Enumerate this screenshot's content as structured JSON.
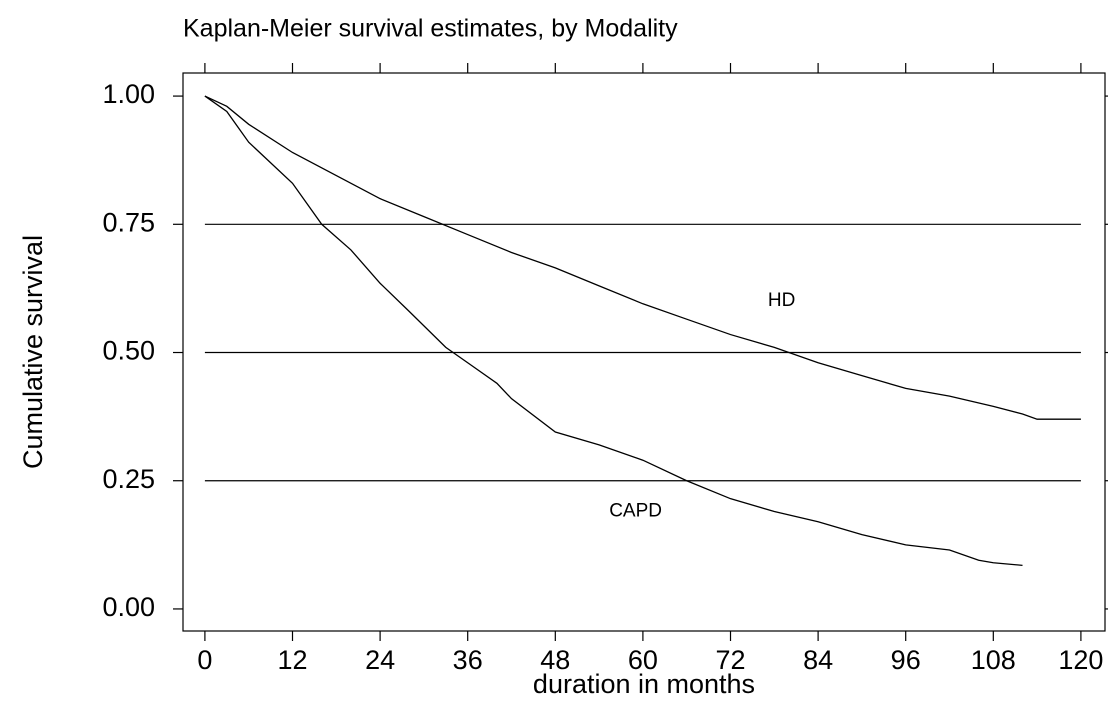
{
  "chart_data": {
    "type": "line",
    "title": "Kaplan-Meier survival estimates, by Modality",
    "x_label": "duration in months",
    "y_label": "Cumulative survival",
    "xlim": [
      -3,
      123.3
    ],
    "ylim": [
      -0.043,
      1.045
    ],
    "xticks": [
      0,
      12,
      24,
      36,
      48,
      60,
      72,
      84,
      96,
      108,
      120
    ],
    "yticks": [
      {
        "value": 0,
        "label": "0.00"
      },
      {
        "value": 0.25,
        "label": "0.25"
      },
      {
        "value": 0.5,
        "label": "0.50"
      },
      {
        "value": 0.75,
        "label": "0.75"
      },
      {
        "value": 1,
        "label": "1.00"
      }
    ],
    "grid": true,
    "series": [
      {
        "name": "HD",
        "color": "#000000",
        "x": [
          0,
          3,
          6,
          12,
          18,
          24,
          30,
          36,
          42,
          48,
          54,
          60,
          66,
          72,
          78,
          84,
          90,
          96,
          102,
          108,
          112,
          114,
          120
        ],
        "values": [
          1.0,
          0.98,
          0.945,
          0.89,
          0.845,
          0.8,
          0.765,
          0.73,
          0.695,
          0.665,
          0.63,
          0.595,
          0.565,
          0.535,
          0.51,
          0.48,
          0.455,
          0.43,
          0.415,
          0.395,
          0.38,
          0.37,
          0.37
        ]
      },
      {
        "name": "CAPD",
        "color": "#000000",
        "x": [
          0,
          3,
          6,
          12,
          16,
          20,
          24,
          28,
          33,
          36,
          40,
          42,
          48,
          54,
          60,
          66,
          72,
          78,
          84,
          90,
          96,
          102,
          106,
          108,
          112
        ],
        "values": [
          1.0,
          0.97,
          0.91,
          0.83,
          0.75,
          0.7,
          0.635,
          0.58,
          0.51,
          0.48,
          0.44,
          0.41,
          0.345,
          0.32,
          0.29,
          0.25,
          0.215,
          0.19,
          0.17,
          0.145,
          0.125,
          0.115,
          0.095,
          0.09,
          0.085
        ]
      }
    ],
    "annotations": [
      {
        "text": "HD",
        "x": 79,
        "y": 0.6
      },
      {
        "text": "CAPD",
        "x": 59,
        "y": 0.19
      }
    ]
  }
}
